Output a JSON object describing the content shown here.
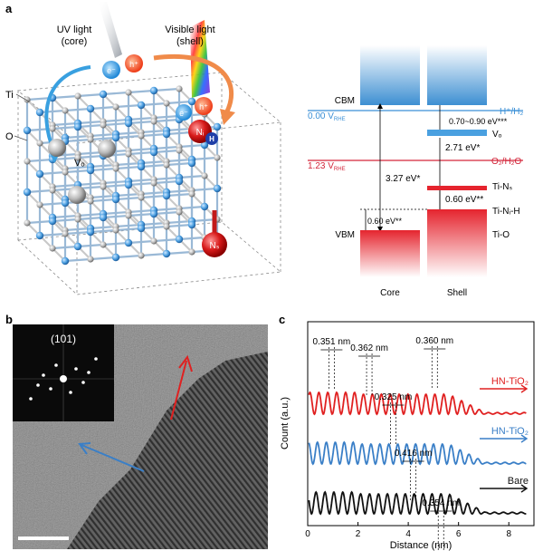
{
  "panels": {
    "a": {
      "label": "a",
      "uv_label_line1": "UV light",
      "uv_label_line2": "(core)",
      "vis_label_line1": "Visible light",
      "vis_label_line2": "(shell)",
      "atom_ti": "Ti",
      "atom_o": "O",
      "vo": "Vₒ",
      "ni": "Nᵢ",
      "ns": "Nₛ",
      "h": "H",
      "electron": "e⁻",
      "hole": "h⁺",
      "band": {
        "cbm": "CBM",
        "vbm": "VBM",
        "e_h2_label": "0.00 V",
        "e_h2_sub": "RHE",
        "h2_couple": "H⁺/H₂",
        "e_o2_label": "1.23 V",
        "e_o2_sub": "RHE",
        "o2_couple": "O₂/H₂O",
        "gap_core": "3.27 eV*",
        "gap_shell": "2.71 eV*",
        "vo_range": "0.70~0.90 eV***",
        "vo_level": "Vₒ",
        "tins_label": "Ti-Nₛ",
        "tins_gap": "0.60 eV**",
        "tinih_label": "Ti-Nᵢ-H",
        "vbm_shift": "0.60 eV**",
        "tio_label": "Ti-O",
        "core_label": "Core",
        "shell_label": "Shell",
        "colors": {
          "cb": "#3f8fd0",
          "vb": "#e5242e",
          "h2_line": "#3a8fd6",
          "o2_line": "#d3263a",
          "vo": "#4aa0e0"
        }
      }
    },
    "b": {
      "label": "b",
      "fft_label": "(101)",
      "arrow_colors": {
        "red": "#e02020",
        "blue": "#3a7fc7"
      }
    },
    "c": {
      "label": "c"
    }
  },
  "chart_data": {
    "type": "line",
    "xlabel": "Distance (nm)",
    "ylabel": "Count (a.u.)",
    "xlim": [
      0,
      9
    ],
    "xticks": [
      0,
      2,
      4,
      6,
      8
    ],
    "series": [
      {
        "name": "HN-TiO₂",
        "color": "#e02020",
        "offset": 2.0,
        "arrow_label": "HN-TiO₂",
        "annotations": [
          "0.351 nm",
          "0.362 nm",
          "0.360 nm"
        ]
      },
      {
        "name": "HN-TiO₂",
        "color": "#3a7fc7",
        "offset": 1.0,
        "arrow_label": "HN-TiO₂",
        "annotations": [
          "0.325 nm",
          "0.416 nm"
        ]
      },
      {
        "name": "Bare",
        "color": "#111111",
        "offset": 0.0,
        "arrow_label": "Bare",
        "annotations": [
          "0.354 nm"
        ]
      }
    ]
  }
}
